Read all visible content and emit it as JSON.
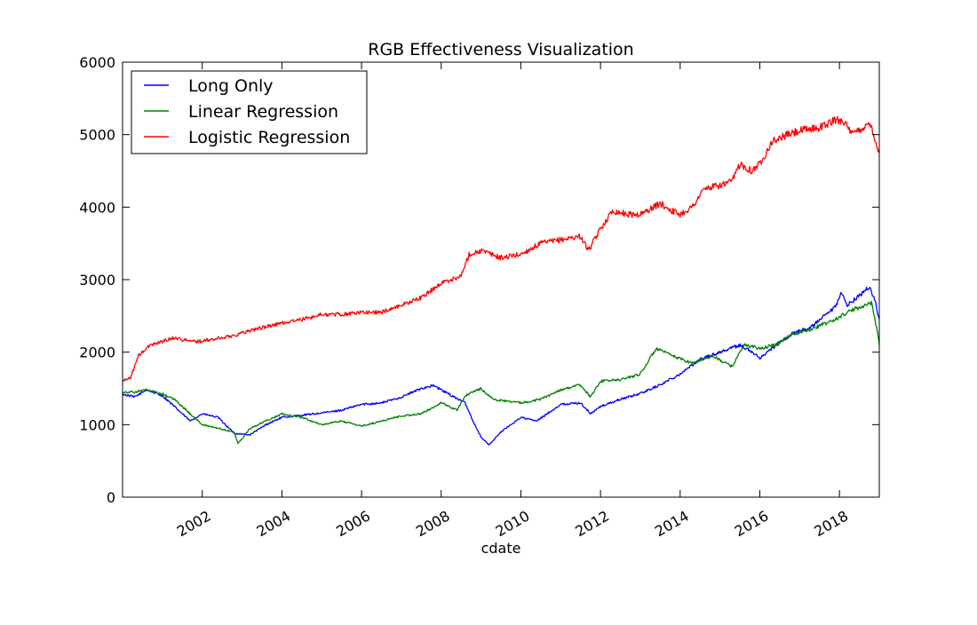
{
  "chart_data": {
    "type": "line",
    "title": "RGB Effectiveness Visualization",
    "xlabel": "cdate",
    "ylabel": "",
    "xlim": [
      2000.0,
      2019.0
    ],
    "ylim": [
      0,
      6000
    ],
    "x_ticks": [
      "2002",
      "2004",
      "2006",
      "2008",
      "2010",
      "2012",
      "2014",
      "2016",
      "2018"
    ],
    "y_ticks": [
      "0",
      "1000",
      "2000",
      "3000",
      "4000",
      "5000",
      "6000"
    ],
    "grid": false,
    "legend_position": "top-left",
    "series": [
      {
        "name": "Long Only",
        "color": "#0000ff",
        "points": [
          [
            2000.0,
            1420
          ],
          [
            2000.3,
            1380
          ],
          [
            2000.6,
            1480
          ],
          [
            2001.0,
            1400
          ],
          [
            2001.3,
            1250
          ],
          [
            2001.7,
            1050
          ],
          [
            2002.0,
            1150
          ],
          [
            2002.4,
            1100
          ],
          [
            2002.8,
            880
          ],
          [
            2003.2,
            860
          ],
          [
            2003.6,
            1000
          ],
          [
            2004.0,
            1100
          ],
          [
            2004.5,
            1130
          ],
          [
            2005.0,
            1160
          ],
          [
            2005.5,
            1200
          ],
          [
            2006.0,
            1280
          ],
          [
            2006.5,
            1300
          ],
          [
            2007.0,
            1380
          ],
          [
            2007.5,
            1500
          ],
          [
            2007.8,
            1540
          ],
          [
            2008.2,
            1420
          ],
          [
            2008.6,
            1300
          ],
          [
            2008.8,
            1050
          ],
          [
            2009.0,
            830
          ],
          [
            2009.2,
            720
          ],
          [
            2009.5,
            900
          ],
          [
            2010.0,
            1100
          ],
          [
            2010.4,
            1050
          ],
          [
            2011.0,
            1280
          ],
          [
            2011.5,
            1300
          ],
          [
            2011.75,
            1150
          ],
          [
            2012.0,
            1250
          ],
          [
            2012.5,
            1350
          ],
          [
            2013.0,
            1430
          ],
          [
            2013.5,
            1550
          ],
          [
            2014.0,
            1700
          ],
          [
            2014.5,
            1900
          ],
          [
            2015.0,
            2000
          ],
          [
            2015.5,
            2100
          ],
          [
            2015.8,
            2000
          ],
          [
            2016.0,
            1920
          ],
          [
            2016.3,
            2050
          ],
          [
            2016.8,
            2250
          ],
          [
            2017.3,
            2350
          ],
          [
            2017.9,
            2620
          ],
          [
            2018.05,
            2820
          ],
          [
            2018.2,
            2650
          ],
          [
            2018.5,
            2780
          ],
          [
            2018.75,
            2900
          ],
          [
            2018.9,
            2700
          ],
          [
            2019.0,
            2450
          ]
        ]
      },
      {
        "name": "Linear Regression",
        "color": "#008000",
        "points": [
          [
            2000.0,
            1450
          ],
          [
            2000.3,
            1450
          ],
          [
            2000.6,
            1480
          ],
          [
            2001.0,
            1420
          ],
          [
            2001.3,
            1350
          ],
          [
            2001.7,
            1150
          ],
          [
            2002.0,
            1000
          ],
          [
            2002.4,
            950
          ],
          [
            2002.8,
            900
          ],
          [
            2002.9,
            740
          ],
          [
            2003.2,
            950
          ],
          [
            2003.6,
            1050
          ],
          [
            2004.0,
            1150
          ],
          [
            2004.5,
            1100
          ],
          [
            2005.0,
            1000
          ],
          [
            2005.5,
            1050
          ],
          [
            2006.0,
            980
          ],
          [
            2006.5,
            1050
          ],
          [
            2007.0,
            1120
          ],
          [
            2007.5,
            1150
          ],
          [
            2008.0,
            1300
          ],
          [
            2008.4,
            1200
          ],
          [
            2008.6,
            1400
          ],
          [
            2009.0,
            1500
          ],
          [
            2009.3,
            1350
          ],
          [
            2010.0,
            1300
          ],
          [
            2010.5,
            1350
          ],
          [
            2011.0,
            1480
          ],
          [
            2011.5,
            1550
          ],
          [
            2011.75,
            1380
          ],
          [
            2012.0,
            1600
          ],
          [
            2012.5,
            1620
          ],
          [
            2013.0,
            1700
          ],
          [
            2013.4,
            2050
          ],
          [
            2013.8,
            1950
          ],
          [
            2014.3,
            1850
          ],
          [
            2014.8,
            1950
          ],
          [
            2015.3,
            1800
          ],
          [
            2015.6,
            2100
          ],
          [
            2016.0,
            2050
          ],
          [
            2016.4,
            2100
          ],
          [
            2016.8,
            2250
          ],
          [
            2017.3,
            2320
          ],
          [
            2017.9,
            2450
          ],
          [
            2018.2,
            2550
          ],
          [
            2018.5,
            2620
          ],
          [
            2018.8,
            2680
          ],
          [
            2018.95,
            2300
          ],
          [
            2019.0,
            2100
          ]
        ]
      },
      {
        "name": "Logistic Regression",
        "color": "#ff0000",
        "points": [
          [
            2000.0,
            1600
          ],
          [
            2000.2,
            1650
          ],
          [
            2000.4,
            1950
          ],
          [
            2000.7,
            2100
          ],
          [
            2001.0,
            2150
          ],
          [
            2001.3,
            2200
          ],
          [
            2001.7,
            2150
          ],
          [
            2002.0,
            2150
          ],
          [
            2002.5,
            2200
          ],
          [
            2002.8,
            2230
          ],
          [
            2003.2,
            2300
          ],
          [
            2003.6,
            2350
          ],
          [
            2004.0,
            2400
          ],
          [
            2004.5,
            2450
          ],
          [
            2005.0,
            2520
          ],
          [
            2005.5,
            2520
          ],
          [
            2006.0,
            2550
          ],
          [
            2006.5,
            2550
          ],
          [
            2007.0,
            2650
          ],
          [
            2007.5,
            2750
          ],
          [
            2008.0,
            2950
          ],
          [
            2008.5,
            3050
          ],
          [
            2008.7,
            3350
          ],
          [
            2009.0,
            3400
          ],
          [
            2009.5,
            3300
          ],
          [
            2010.0,
            3350
          ],
          [
            2010.5,
            3500
          ],
          [
            2011.0,
            3550
          ],
          [
            2011.5,
            3600
          ],
          [
            2011.7,
            3400
          ],
          [
            2012.0,
            3700
          ],
          [
            2012.3,
            3950
          ],
          [
            2012.7,
            3900
          ],
          [
            2013.0,
            3900
          ],
          [
            2013.5,
            4050
          ],
          [
            2013.8,
            3950
          ],
          [
            2014.0,
            3900
          ],
          [
            2014.3,
            4000
          ],
          [
            2014.6,
            4250
          ],
          [
            2015.0,
            4300
          ],
          [
            2015.3,
            4350
          ],
          [
            2015.5,
            4600
          ],
          [
            2015.8,
            4500
          ],
          [
            2016.0,
            4600
          ],
          [
            2016.3,
            4900
          ],
          [
            2016.7,
            5000
          ],
          [
            2017.0,
            5050
          ],
          [
            2017.5,
            5100
          ],
          [
            2017.9,
            5200
          ],
          [
            2018.1,
            5200
          ],
          [
            2018.3,
            5000
          ],
          [
            2018.6,
            5100
          ],
          [
            2018.8,
            5150
          ],
          [
            2018.9,
            4900
          ],
          [
            2019.0,
            4750
          ]
        ]
      }
    ]
  }
}
